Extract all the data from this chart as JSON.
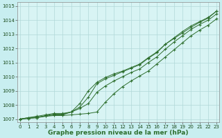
{
  "background_color": "#c8eef0",
  "plot_bg_color": "#d8f4f4",
  "grid_color": "#b0d8d8",
  "line_color": "#2d6e2d",
  "xlabel": "Graphe pression niveau de la mer (hPa)",
  "x_values": [
    0,
    1,
    2,
    3,
    4,
    5,
    6,
    7,
    8,
    9,
    10,
    11,
    12,
    13,
    14,
    15,
    16,
    17,
    18,
    19,
    20,
    21,
    22,
    23
  ],
  "series1": [
    1007.0,
    1007.1,
    1007.15,
    1007.2,
    1007.25,
    1007.25,
    1007.3,
    1007.35,
    1007.4,
    1007.5,
    1008.2,
    1008.8,
    1009.3,
    1009.7,
    1010.05,
    1010.4,
    1010.9,
    1011.4,
    1011.9,
    1012.4,
    1012.9,
    1013.3,
    1013.65,
    1014.1
  ],
  "series2": [
    1007.0,
    1007.1,
    1007.2,
    1007.3,
    1007.4,
    1007.4,
    1007.5,
    1007.75,
    1008.1,
    1008.9,
    1009.35,
    1009.7,
    1010.0,
    1010.3,
    1010.55,
    1011.0,
    1011.4,
    1011.95,
    1012.45,
    1012.9,
    1013.35,
    1013.7,
    1014.0,
    1014.45
  ],
  "series3": [
    1007.0,
    1007.05,
    1007.1,
    1007.25,
    1007.35,
    1007.35,
    1007.5,
    1007.85,
    1008.55,
    1009.5,
    1009.85,
    1010.1,
    1010.35,
    1010.6,
    1010.85,
    1011.3,
    1011.7,
    1012.3,
    1012.75,
    1013.2,
    1013.6,
    1013.9,
    1014.2,
    1014.65
  ],
  "series4": [
    1007.0,
    1007.05,
    1007.1,
    1007.2,
    1007.3,
    1007.3,
    1007.5,
    1008.1,
    1009.0,
    1009.6,
    1009.95,
    1010.2,
    1010.4,
    1010.65,
    1010.9,
    1011.35,
    1011.75,
    1012.3,
    1012.7,
    1013.1,
    1013.5,
    1013.85,
    1014.15,
    1014.65
  ],
  "ylim": [
    1006.8,
    1015.3
  ],
  "yticks": [
    1007,
    1008,
    1009,
    1010,
    1011,
    1012,
    1013,
    1014,
    1015
  ],
  "xticks": [
    0,
    1,
    2,
    3,
    4,
    5,
    6,
    7,
    8,
    9,
    10,
    11,
    12,
    13,
    14,
    15,
    16,
    17,
    18,
    19,
    20,
    21,
    22,
    23
  ],
  "tick_fontsize": 5.0,
  "label_fontsize": 6.5,
  "marker": "+",
  "markersize": 3.5,
  "linewidth": 0.7
}
